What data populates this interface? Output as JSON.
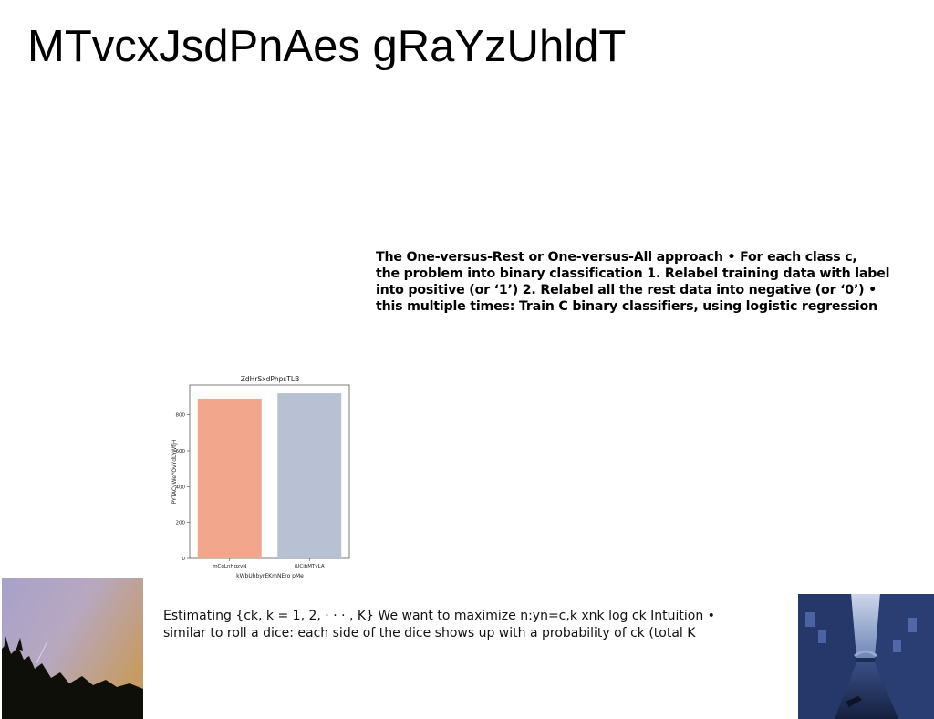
{
  "title": "MTvcxJsdPnAes gRaYzUhldT",
  "bold_paragraph": {
    "lines": [
      "The One-versus-Rest or One-versus-All approach • For each class c,",
      "the problem into binary classification 1. Relabel training data with label",
      "into positive (or ‘1’) 2. Relabel all the rest data into negative (or ‘0’) •",
      "this multiple times: Train C binary classifiers, using logistic regression"
    ]
  },
  "body_paragraph": {
    "lines": [
      "Estimating {ck, k = 1, 2, · · · , K} We want to maximize  n:yn=c,k xnk log ck Intuition •",
      "similar to roll a dice: each side of the dice shows up with a probability of ck (total K"
    ]
  },
  "chart_data": {
    "type": "bar",
    "title": "ZdHrSxdPhpsTLB",
    "xlabel": "kWbUhbyrEKmNEro pMe",
    "ylabel": "PYTACvWeYOvYdLYWfjH",
    "categories": [
      "mCqLnHgzyN",
      "iUCjbMTvLA"
    ],
    "values": [
      890,
      920
    ],
    "ylim": [
      0,
      966
    ],
    "yticks": [
      0,
      200,
      400,
      600,
      800
    ],
    "colors": [
      "#f2a78c",
      "#b8c1d3"
    ],
    "grid": false
  },
  "images": {
    "left": "night-sky-trees-photo",
    "right": "venice-canal-photo"
  }
}
